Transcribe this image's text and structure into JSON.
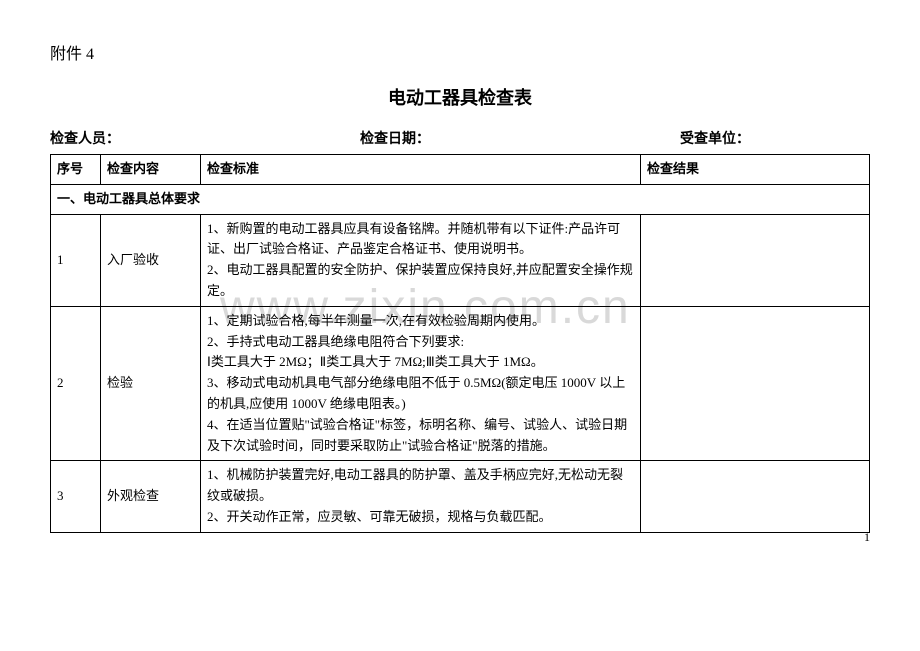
{
  "attachment": "附件 4",
  "title": "电动工器具检查表",
  "meta": {
    "inspector": "检查人员：",
    "date": "检查日期：",
    "unit": "受查单位："
  },
  "headers": {
    "idx": "序号",
    "item": "检查内容",
    "std": "检查标准",
    "res": "检查结果"
  },
  "section1": "一、电动工器具总体要求",
  "rows": {
    "r1": {
      "idx": "1",
      "item": "入厂验收",
      "std": "1、新购置的电动工器具应具有设备铭牌。并随机带有以下证件:产品许可证、出厂试验合格证、产品鉴定合格证书、使用说明书。\n2、电动工器具配置的安全防护、保护装置应保持良好,并应配置安全操作规定。"
    },
    "r2": {
      "idx": "2",
      "item": "检验",
      "std": "1、定期试验合格,每半年测量一次,在有效检验周期内使用。\n2、手持式电动工器具绝缘电阻符合下列要求:\nⅠ类工具大于 2MΩ；Ⅱ类工具大于 7MΩ;Ⅲ类工具大于 1MΩ。\n3、移动式电动机具电气部分绝缘电阻不低于 0.5MΩ(额定电压 1000V 以上的机具,应使用 1000V 绝缘电阻表。)\n4、在适当位置贴\"试验合格证\"标签，标明名称、编号、试验人、试验日期及下次试验时间，同时要采取防止\"试验合格证\"脱落的措施。"
    },
    "r3": {
      "idx": "3",
      "item": "外观检查",
      "std": "1、机械防护装置完好,电动工器具的防护罩、盖及手柄应完好,无松动无裂纹或破损。\n2、开关动作正常，应灵敏、可靠无破损，规格与负载匹配。"
    }
  },
  "watermark": "www.zixin.com.cn",
  "pagenum": "1"
}
